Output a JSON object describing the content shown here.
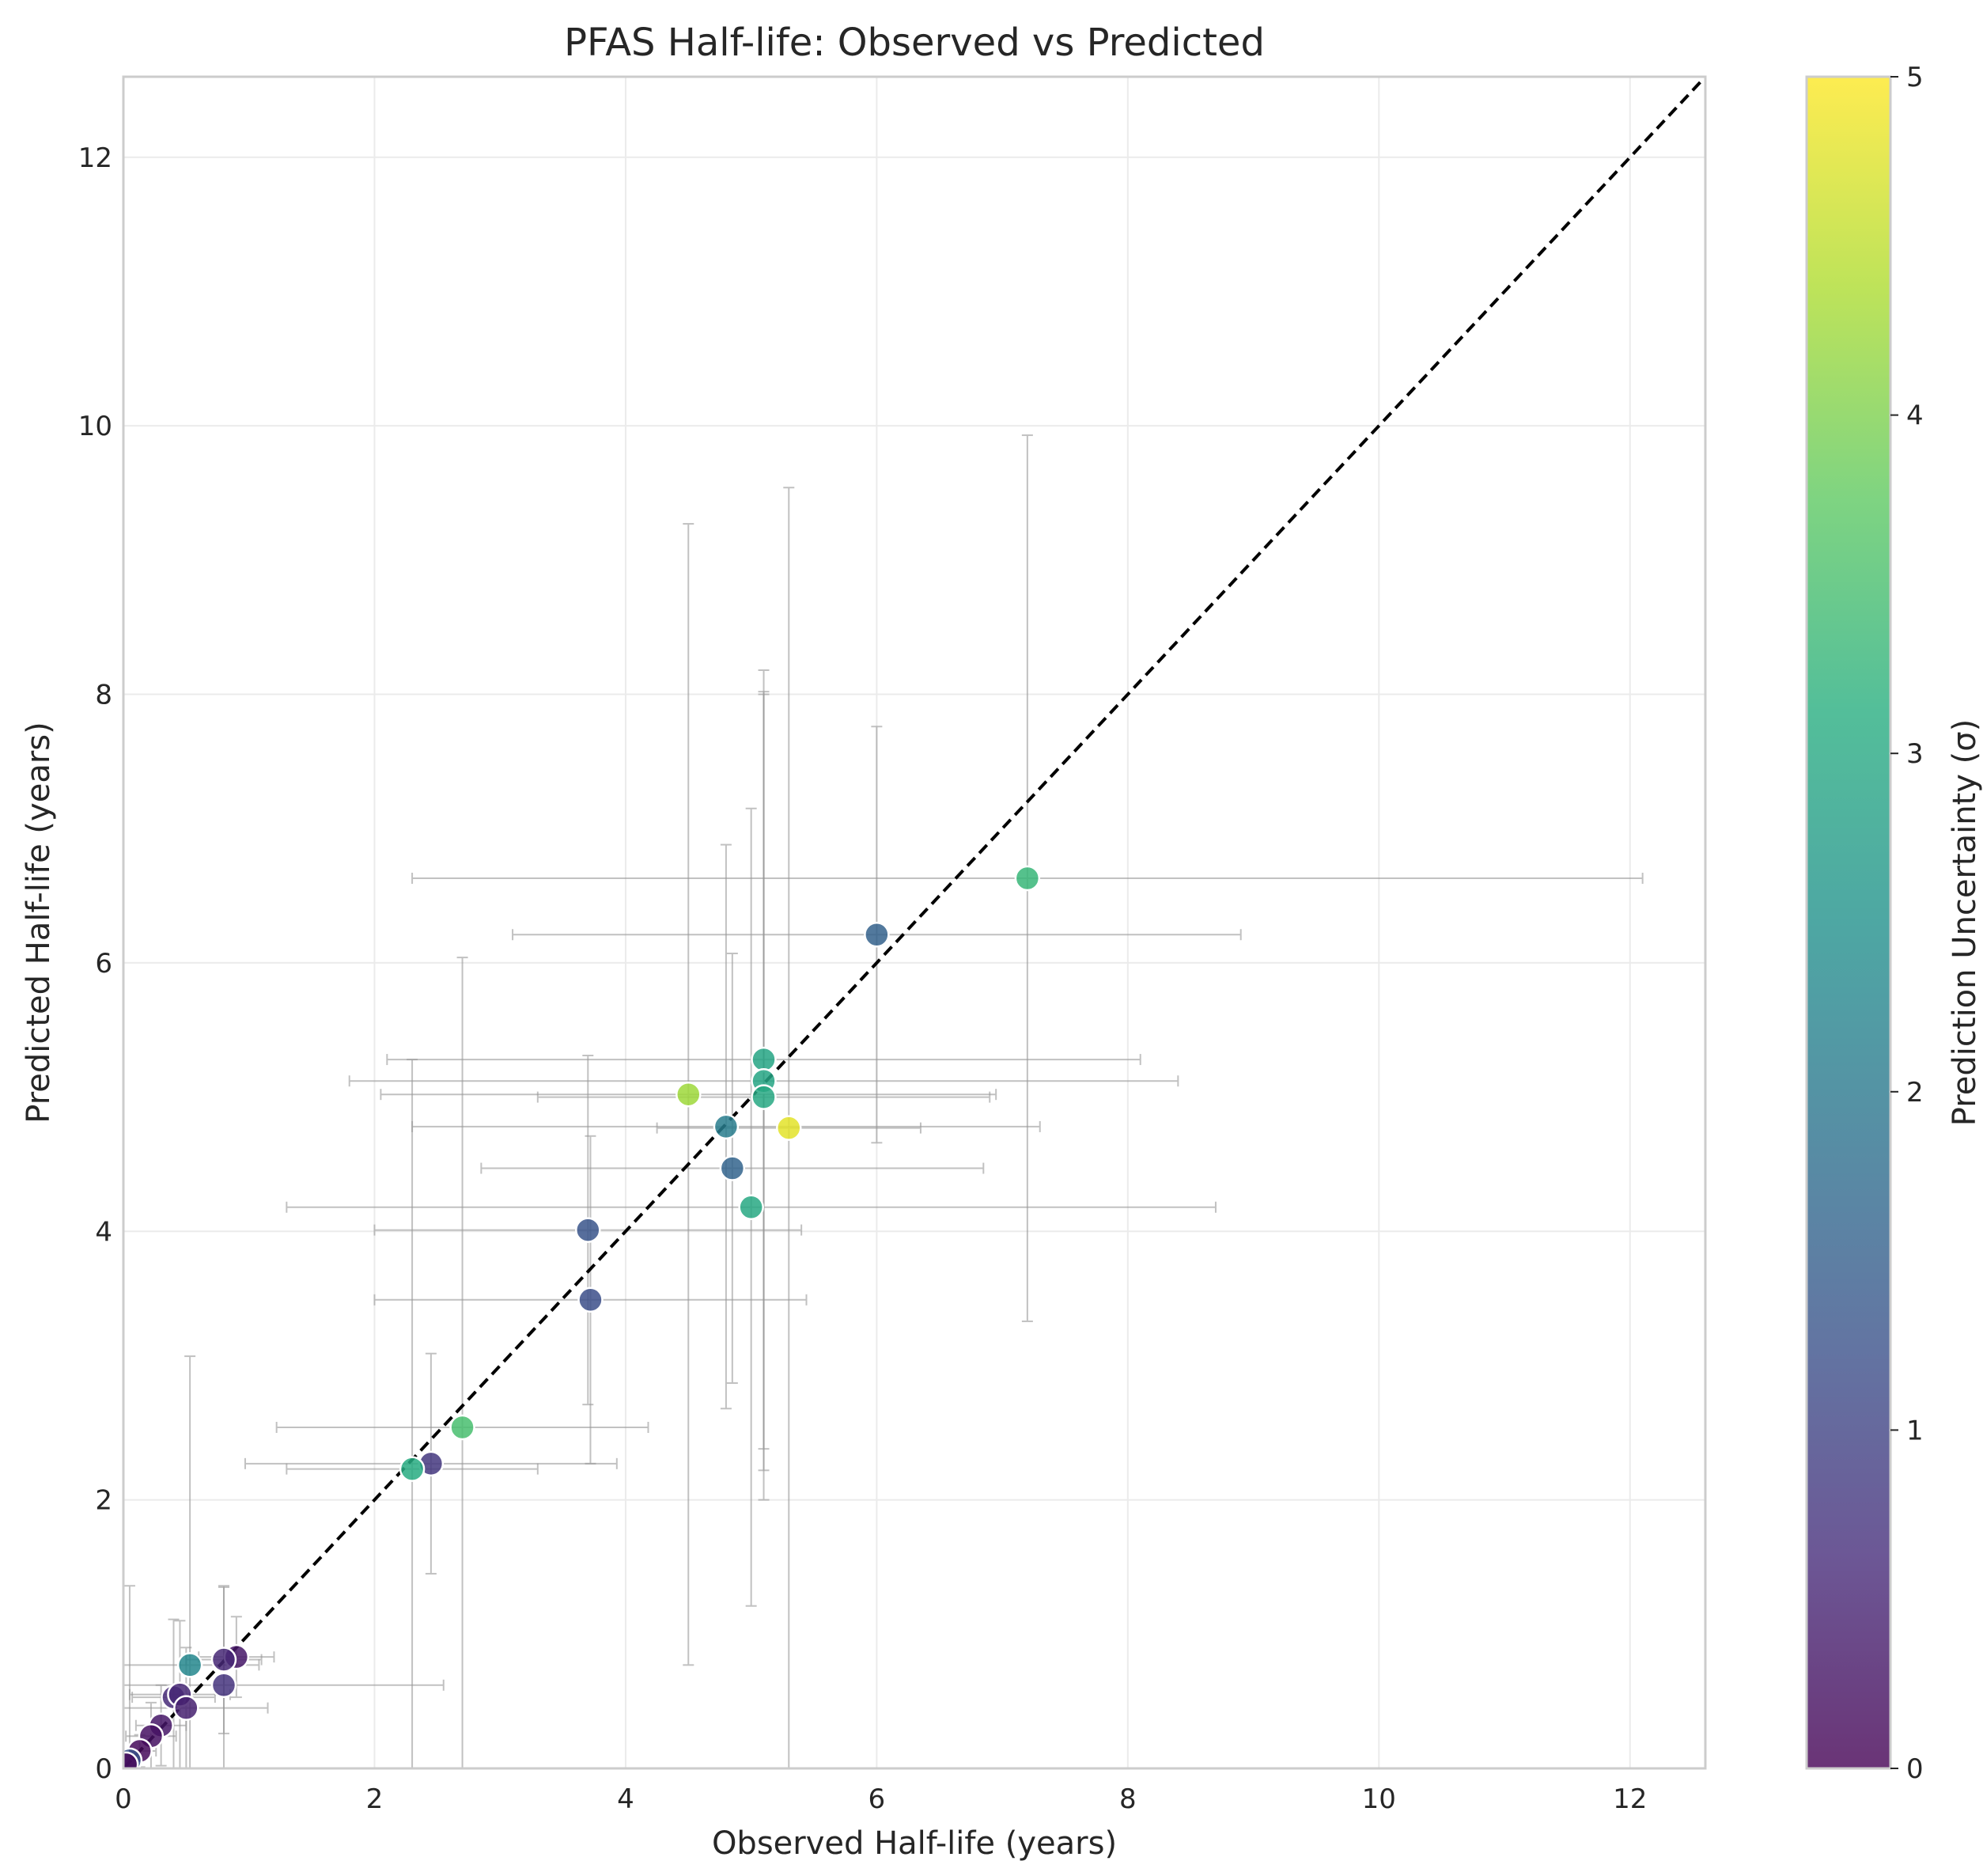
{
  "chart_data": {
    "type": "scatter",
    "title": "PFAS Half-life: Observed vs Predicted",
    "xlabel": "Observed Half-life (years)",
    "ylabel": "Predicted Half-life (years)",
    "xlim": [
      0,
      12.6
    ],
    "ylim": [
      0,
      12.6
    ],
    "x_ticks": [
      "0",
      "2",
      "4",
      "6",
      "8",
      "10",
      "12"
    ],
    "y_ticks": [
      "0",
      "2",
      "4",
      "6",
      "8",
      "10",
      "12"
    ],
    "grid": true,
    "reference_line": "y = x",
    "reference_line_color": "#000000",
    "errorbar_color": "#999999",
    "colorbar": {
      "label": "Prediction Uncertainty (σ)",
      "range": [
        0,
        5
      ],
      "ticks": [
        "0",
        "1",
        "2",
        "3",
        "4",
        "5"
      ],
      "colormap": "viridis"
    },
    "points": [
      {
        "x": 7.2,
        "y": 6.63,
        "xerr": [
          4.9,
          4.9
        ],
        "yerr": [
          3.3,
          3.3
        ],
        "sigma": 3.3
      },
      {
        "x": 6.0,
        "y": 6.21,
        "xerr": [
          2.9,
          2.9
        ],
        "yerr": [
          1.55,
          1.55
        ],
        "sigma": 1.55
      },
      {
        "x": 5.1,
        "y": 5.28,
        "xerr": [
          3.0,
          3.0
        ],
        "yerr": [
          2.9,
          2.9
        ],
        "sigma": 2.9
      },
      {
        "x": 5.1,
        "y": 5.12,
        "xerr": [
          3.3,
          3.3
        ],
        "yerr": [
          2.9,
          2.9
        ],
        "sigma": 2.9
      },
      {
        "x": 4.5,
        "y": 5.02,
        "xerr": [
          2.45,
          2.45
        ],
        "yerr": [
          4.25,
          4.25
        ],
        "sigma": 4.25
      },
      {
        "x": 5.1,
        "y": 5.0,
        "xerr": [
          1.8,
          1.8
        ],
        "yerr": [
          3.0,
          3.0
        ],
        "sigma": 3.0
      },
      {
        "x": 4.8,
        "y": 4.78,
        "xerr": [
          2.5,
          2.5
        ],
        "yerr": [
          2.1,
          2.1
        ],
        "sigma": 2.1
      },
      {
        "x": 5.3,
        "y": 4.77,
        "xerr": [
          1.05,
          1.05
        ],
        "yerr": [
          4.77,
          4.77
        ],
        "sigma": 4.8
      },
      {
        "x": 4.85,
        "y": 4.47,
        "xerr": [
          2.0,
          2.0
        ],
        "yerr": [
          1.6,
          1.6
        ],
        "sigma": 1.6
      },
      {
        "x": 5.0,
        "y": 4.18,
        "xerr": [
          3.7,
          3.7
        ],
        "yerr": [
          2.97,
          2.97
        ],
        "sigma": 3.0
      },
      {
        "x": 3.7,
        "y": 4.01,
        "xerr": [
          1.7,
          1.7
        ],
        "yerr": [
          1.3,
          1.3
        ],
        "sigma": 1.3
      },
      {
        "x": 3.72,
        "y": 3.49,
        "xerr": [
          1.72,
          1.72
        ],
        "yerr": [
          1.22,
          1.22
        ],
        "sigma": 1.2
      },
      {
        "x": 2.7,
        "y": 2.54,
        "xerr": [
          1.48,
          1.48
        ],
        "yerr": [
          3.5,
          3.5
        ],
        "sigma": 3.5
      },
      {
        "x": 2.45,
        "y": 2.27,
        "xerr": [
          1.48,
          1.48
        ],
        "yerr": [
          0.82,
          0.82
        ],
        "sigma": 0.8
      },
      {
        "x": 2.3,
        "y": 2.23,
        "xerr": [
          1.0,
          1.0
        ],
        "yerr": [
          3.05,
          3.05
        ],
        "sigma": 3.05
      },
      {
        "x": 0.53,
        "y": 0.77,
        "xerr": [
          0.55,
          0.55
        ],
        "yerr": [
          2.3,
          2.3
        ],
        "sigma": 2.3
      },
      {
        "x": 0.9,
        "y": 0.83,
        "xerr": [
          0.3,
          0.3
        ],
        "yerr": [
          0.3,
          0.3
        ],
        "sigma": 0.3
      },
      {
        "x": 0.8,
        "y": 0.81,
        "xerr": [
          0.3,
          0.3
        ],
        "yerr": [
          0.55,
          0.55
        ],
        "sigma": 0.55
      },
      {
        "x": 0.8,
        "y": 0.62,
        "xerr": [
          1.75,
          1.75
        ],
        "yerr": [
          0.73,
          0.73
        ],
        "sigma": 0.75
      },
      {
        "x": 0.4,
        "y": 0.53,
        "xerr": [
          0.33,
          0.33
        ],
        "yerr": [
          0.58,
          0.58
        ],
        "sigma": 0.58
      },
      {
        "x": 0.45,
        "y": 0.55,
        "xerr": [
          0.4,
          0.4
        ],
        "yerr": [
          0.55,
          0.55
        ],
        "sigma": 0.55
      },
      {
        "x": 0.5,
        "y": 0.45,
        "xerr": [
          0.65,
          0.65
        ],
        "yerr": [
          0.45,
          0.45
        ],
        "sigma": 0.45
      },
      {
        "x": 0.3,
        "y": 0.32,
        "xerr": [
          0.2,
          0.2
        ],
        "yerr": [
          0.3,
          0.3
        ],
        "sigma": 0.3
      },
      {
        "x": 0.22,
        "y": 0.24,
        "xerr": [
          0.2,
          0.2
        ],
        "yerr": [
          0.25,
          0.25
        ],
        "sigma": 0.22
      },
      {
        "x": 0.13,
        "y": 0.13,
        "xerr": [
          0.13,
          0.13
        ],
        "yerr": [
          0.12,
          0.12
        ],
        "sigma": 0.12
      },
      {
        "x": 0.05,
        "y": 0.06,
        "xerr": [
          0.05,
          0.05
        ],
        "yerr": [
          1.3,
          1.3
        ],
        "sigma": 1.3
      },
      {
        "x": 0.02,
        "y": 0.03,
        "xerr": [
          0.02,
          0.02
        ],
        "yerr": [
          0.03,
          0.03
        ],
        "sigma": 0.05
      }
    ]
  }
}
